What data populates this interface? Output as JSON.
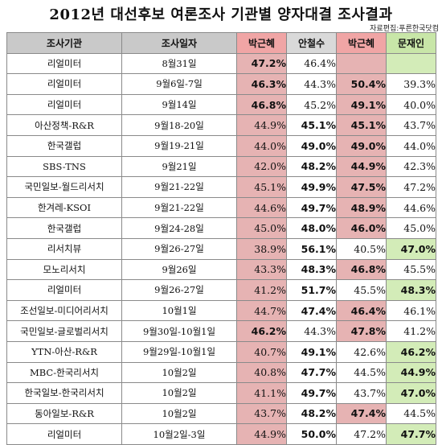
{
  "title": "2012년 대선후보 여론조사 기관별 양자대결 조사결과",
  "source": "자료편집:푸른한국닷컴",
  "headers": {
    "org": "조사기관",
    "date": "조사일자",
    "park1": "박근혜",
    "ahn": "안철수",
    "park2": "박근혜",
    "moon": "문재인"
  },
  "rows": [
    {
      "org": "리얼미터",
      "date": "8월31일",
      "park1": "47.2%",
      "ahn": "46.4%",
      "park2": "",
      "moon": ""
    },
    {
      "org": "리얼미터",
      "date": "9월6일-7일",
      "park1": "46.3%",
      "ahn": "44.3%",
      "park2": "50.4%",
      "moon": "39.3%"
    },
    {
      "org": "리얼미터",
      "date": "9월14일",
      "park1": "46.8%",
      "ahn": "45.2%",
      "park2": "49.1%",
      "moon": "40.0%"
    },
    {
      "org": "아산정책-R&R",
      "date": "9월18-20일",
      "park1": "44.9%",
      "ahn": "45.1%",
      "park2": "45.1%",
      "moon": "43.7%"
    },
    {
      "org": "한국갤럽",
      "date": "9월19-21일",
      "park1": "44.0%",
      "ahn": "49.0%",
      "park2": "49.0%",
      "moon": "44.0%"
    },
    {
      "org": "SBS-TNS",
      "date": "9월21일",
      "park1": "42.0%",
      "ahn": "48.2%",
      "park2": "44.9%",
      "moon": "42.3%"
    },
    {
      "org": "국민일보-월드리서치",
      "date": "9월21-22일",
      "park1": "45.1%",
      "ahn": "49.9%",
      "park2": "47.5%",
      "moon": "47.2%"
    },
    {
      "org": "한겨레-KSOI",
      "date": "9월21-22일",
      "park1": "44.6%",
      "ahn": "49.7%",
      "park2": "48.9%",
      "moon": "44.6%"
    },
    {
      "org": "한국갤럽",
      "date": "9월24-28일",
      "park1": "45.0%",
      "ahn": "48.0%",
      "park2": "46.0%",
      "moon": "45.0%"
    },
    {
      "org": "리서치뷰",
      "date": "9월26-27일",
      "park1": "38.9%",
      "ahn": "56.1%",
      "park2": "40.5%",
      "moon": "47.0%"
    },
    {
      "org": "모노리서치",
      "date": "9월26일",
      "park1": "43.3%",
      "ahn": "48.3%",
      "park2": "46.8%",
      "moon": "45.5%"
    },
    {
      "org": "리얼미터",
      "date": "9월26-27일",
      "park1": "41.2%",
      "ahn": "51.7%",
      "park2": "45.5%",
      "moon": "48.3%"
    },
    {
      "org": "조선일보-미디어리서치",
      "date": "10월1일",
      "park1": "44.7%",
      "ahn": "47.4%",
      "park2": "46.4%",
      "moon": "46.1%"
    },
    {
      "org": "국민일보-글로벌리서치",
      "date": "9월30일-10월1일",
      "park1": "46.2%",
      "ahn": "44.3%",
      "park2": "47.8%",
      "moon": "41.2%"
    },
    {
      "org": "YTN-아산-R&R",
      "date": "9월29일-10월1일",
      "park1": "40.7%",
      "ahn": "49.1%",
      "park2": "42.6%",
      "moon": "46.2%"
    },
    {
      "org": "MBC-한국리서치",
      "date": "10월2일",
      "park1": "40.8%",
      "ahn": "47.7%",
      "park2": "44.5%",
      "moon": "44.9%"
    },
    {
      "org": "한국일보-한국리서치",
      "date": "10월2일",
      "park1": "41.1%",
      "ahn": "49.7%",
      "park2": "43.7%",
      "moon": "47.0%"
    },
    {
      "org": "동아일보-R&R",
      "date": "10월2일",
      "park1": "43.7%",
      "ahn": "48.2%",
      "park2": "47.4%",
      "moon": "44.5%"
    },
    {
      "org": "리얼미터",
      "date": "10월2일-3일",
      "park1": "44.9%",
      "ahn": "50.0%",
      "park2": "47.2%",
      "moon": "47.7%"
    }
  ],
  "colors": {
    "header_gray": "#c9c9c9",
    "park_header": "#f0a5a5",
    "park_cell": "#e6b3b3",
    "moon_header": "#c8e6a8",
    "moon_cell": "#d3ecb8"
  }
}
